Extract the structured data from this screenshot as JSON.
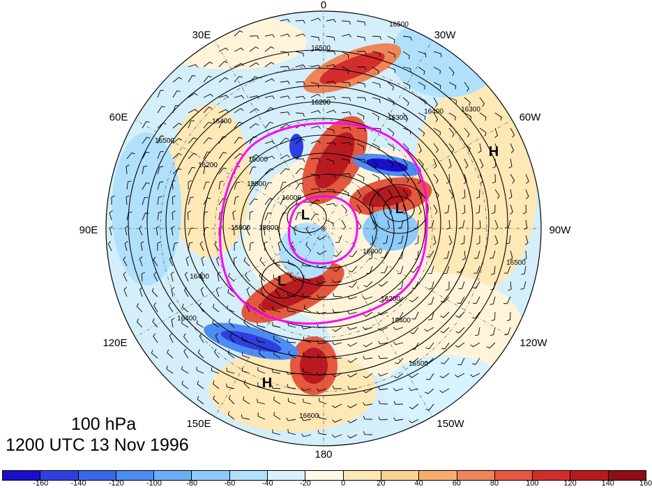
{
  "title": {
    "level": "100 hPa",
    "time": "1200 UTC 13 Nov 1996"
  },
  "longitude_labels": [
    "0",
    "30W",
    "60W",
    "90W",
    "120W",
    "150W",
    "180",
    "150E",
    "120E",
    "90E",
    "60E",
    "30E"
  ],
  "contour_labels": [
    "16500",
    "16500",
    "16200",
    "16300",
    "16400",
    "16300",
    "16400",
    "16500",
    "16200",
    "16000",
    "15800",
    "16000",
    "15900",
    "15800",
    "16200",
    "16000",
    "16400",
    "16200",
    "16400",
    "16500",
    "16600",
    "16400",
    "16500"
  ],
  "highs_lows": [
    "L",
    "L",
    "L",
    "H",
    "H"
  ],
  "colorbar": {
    "ticks": [
      "-160",
      "-140",
      "-120",
      "-100",
      "-80",
      "-60",
      "-40",
      "-20",
      "0",
      "20",
      "40",
      "60",
      "80",
      "100",
      "120",
      "140",
      "160"
    ],
    "colors": [
      "#1a0fc9",
      "#2e3fe0",
      "#3a67ea",
      "#4d8cf2",
      "#6aaef6",
      "#8ccbfa",
      "#b0e0fc",
      "#d6f3fe",
      "#fffae8",
      "#fde8b6",
      "#fbd08c",
      "#f6ad6e",
      "#ef8458",
      "#e4583f",
      "#d42d2d",
      "#b81a20",
      "#8f0d16"
    ]
  },
  "colors": {
    "pv_contour": "#ff00ff",
    "height_contour": "#000000",
    "wind_barb": "#000000"
  }
}
